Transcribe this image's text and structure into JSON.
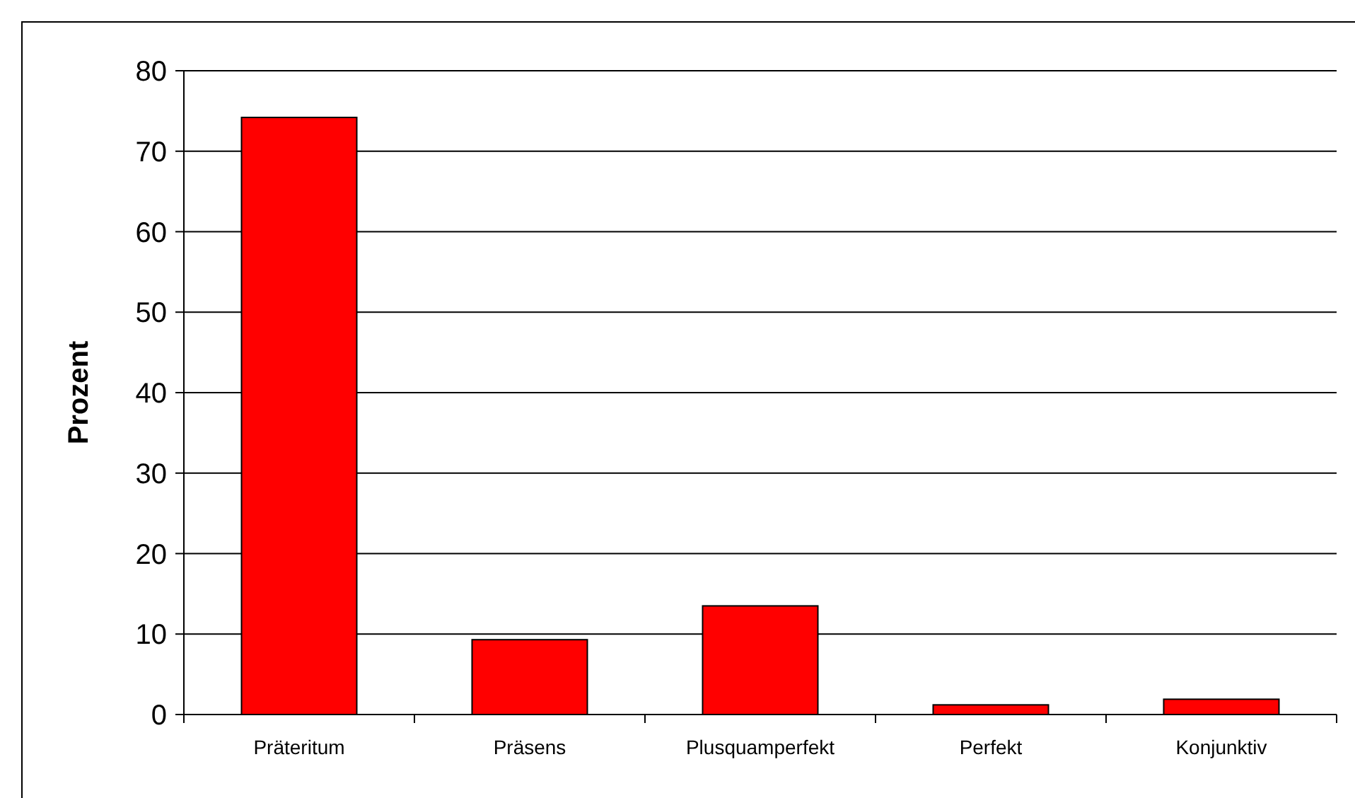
{
  "chart_data": {
    "type": "bar",
    "ylabel": "Prozent",
    "categories": [
      "Präteritum",
      "Präsens",
      "Plusquamperfekt",
      "Perfekt",
      "Konjunktiv"
    ],
    "values": [
      74.2,
      9.3,
      13.5,
      1.2,
      1.9
    ],
    "color": "#ff0000",
    "ylim": [
      0,
      80
    ],
    "yticks": [
      0,
      10,
      20,
      30,
      40,
      50,
      60,
      70,
      80
    ],
    "grid": "y"
  }
}
